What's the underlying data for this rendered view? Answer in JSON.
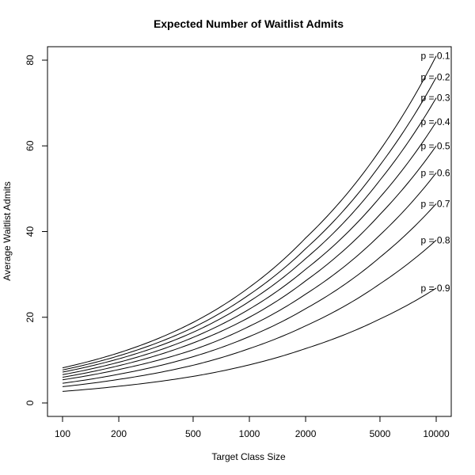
{
  "chart_data": {
    "type": "line",
    "title": "Expected Number of Waitlist Admits",
    "xlabel": "Target Class Size",
    "ylabel": "Average Waitlist Admits",
    "xscale": "log",
    "xlim": [
      100,
      10000
    ],
    "ylim": [
      0,
      80
    ],
    "xticks": [
      100,
      200,
      500,
      1000,
      2000,
      5000,
      10000
    ],
    "yticks": [
      0,
      20,
      40,
      60,
      80
    ],
    "grid": false,
    "legend": "inline labels at right end of each curve",
    "x": [
      100,
      200,
      500,
      1000,
      2000,
      5000,
      10000
    ],
    "series": [
      {
        "name": "p = 0.1",
        "values": [
          8.2,
          11.7,
          18.8,
          27.0,
          38.5,
          59.0,
          81.0
        ]
      },
      {
        "name": "p = 0.2",
        "values": [
          7.7,
          11.0,
          17.6,
          25.3,
          36.0,
          55.5,
          76.0
        ]
      },
      {
        "name": "p = 0.3",
        "values": [
          7.2,
          10.3,
          16.5,
          23.7,
          33.7,
          52.0,
          71.2
        ]
      },
      {
        "name": "p = 0.4",
        "values": [
          6.6,
          9.5,
          15.3,
          21.9,
          31.2,
          48.0,
          65.6
        ]
      },
      {
        "name": "p = 0.5",
        "values": [
          6.0,
          8.7,
          14.0,
          20.0,
          28.5,
          44.0,
          60.0
        ]
      },
      {
        "name": "p = 0.6",
        "values": [
          5.4,
          7.8,
          12.4,
          17.9,
          25.4,
          39.2,
          53.7
        ]
      },
      {
        "name": "p = 0.7",
        "values": [
          4.6,
          6.7,
          10.8,
          15.5,
          22.0,
          34.0,
          46.5
        ]
      },
      {
        "name": "p = 0.8",
        "values": [
          3.8,
          5.5,
          8.8,
          12.7,
          18.0,
          27.8,
          38.0
        ]
      },
      {
        "name": "p = 0.9",
        "values": [
          2.7,
          3.9,
          6.2,
          8.9,
          12.7,
          19.6,
          26.8
        ]
      }
    ]
  }
}
